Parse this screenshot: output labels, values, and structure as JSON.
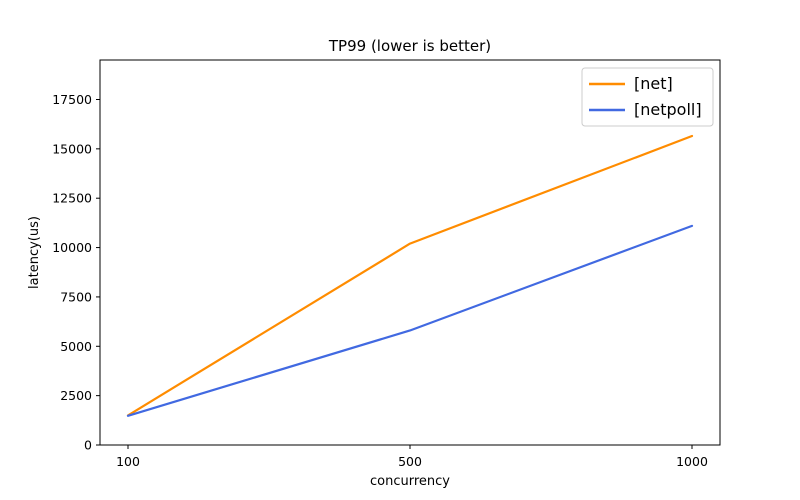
{
  "chart_data": {
    "type": "line",
    "title": "TP99 (lower is better)",
    "xlabel": "concurrency",
    "ylabel": "latency(us)",
    "categories": [
      "100",
      "500",
      "1000"
    ],
    "x": [
      100,
      500,
      1000
    ],
    "xticks": [
      "100",
      "500",
      "1000"
    ],
    "ylim": [
      0,
      19500
    ],
    "yticks": [
      "0",
      "2500",
      "5000",
      "7500",
      "10000",
      "12500",
      "15000",
      "17500"
    ],
    "grid": false,
    "legend_position": "top-right",
    "series": [
      {
        "name": "[net]",
        "color": "#ff8c00",
        "values": [
          1500,
          10200,
          15650
        ]
      },
      {
        "name": "[netpoll]",
        "color": "#4169e1",
        "values": [
          1480,
          5800,
          11100
        ]
      }
    ]
  }
}
